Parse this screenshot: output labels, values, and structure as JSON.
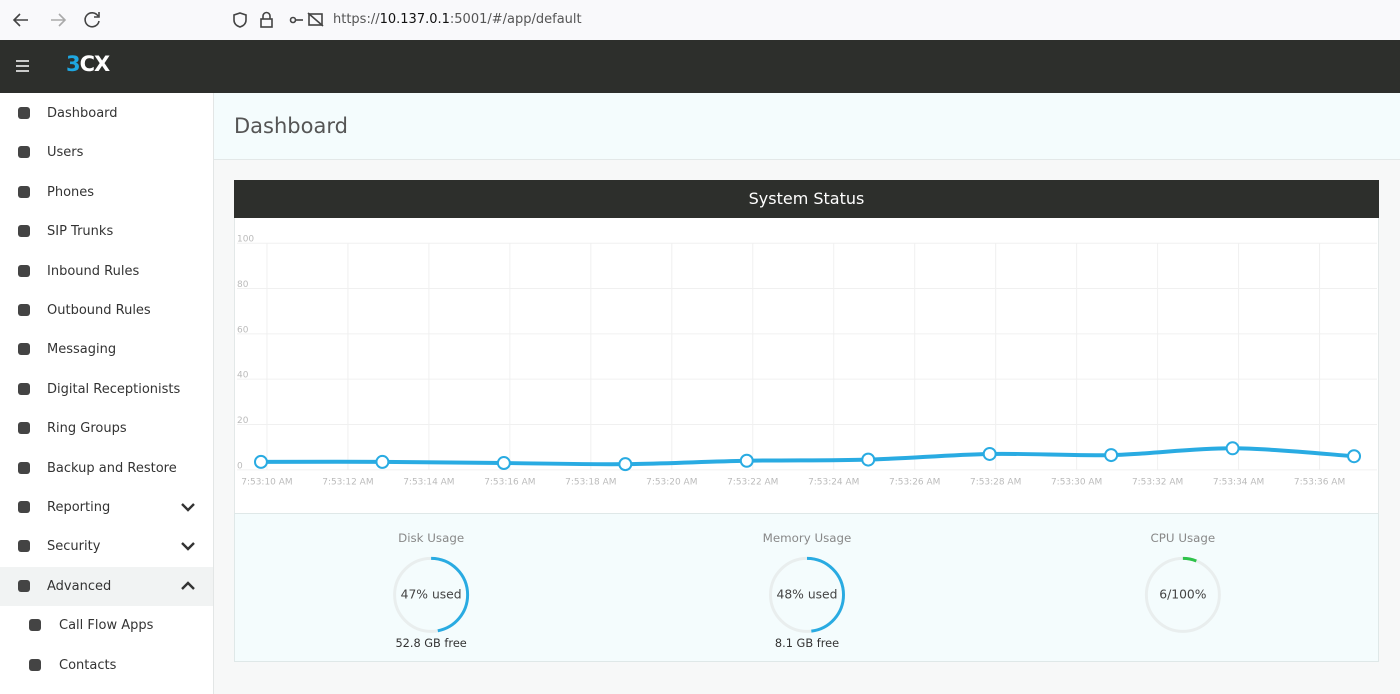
{
  "browser": {
    "url_scheme": "https://",
    "url_host": "10.137.0.1",
    "url_rest": ":5001/#/app/default"
  },
  "app": {
    "logo": "3CX"
  },
  "sidebar": {
    "items": [
      {
        "label": "Dashboard"
      },
      {
        "label": "Users"
      },
      {
        "label": "Phones"
      },
      {
        "label": "SIP Trunks"
      },
      {
        "label": "Inbound Rules"
      },
      {
        "label": "Outbound Rules"
      },
      {
        "label": "Messaging"
      },
      {
        "label": "Digital Receptionists"
      },
      {
        "label": "Ring Groups"
      },
      {
        "label": "Backup and Restore"
      },
      {
        "label": "Reporting",
        "chevron": "down"
      },
      {
        "label": "Security",
        "chevron": "down"
      },
      {
        "label": "Advanced",
        "chevron": "up",
        "active": true
      },
      {
        "label": "Call Flow Apps",
        "sub": true
      },
      {
        "label": "Contacts",
        "sub": true
      }
    ]
  },
  "page": {
    "title": "Dashboard"
  },
  "panel": {
    "title": "System Status"
  },
  "chart_data": {
    "type": "line",
    "x": [
      "7:53:10 AM",
      "7:53:13 AM",
      "7:53:16 AM",
      "7:53:19 AM",
      "7:53:22 AM",
      "7:53:25 AM",
      "7:53:28 AM",
      "7:53:31 AM",
      "7:53:34 AM",
      "7:53:37 AM"
    ],
    "values": [
      3.5,
      3.5,
      3,
      2.5,
      4,
      4.5,
      7,
      6.5,
      9.5,
      6
    ],
    "color": "#29abe2",
    "ylim": [
      0,
      100
    ],
    "yticks": [
      0,
      20,
      40,
      60,
      80,
      100
    ],
    "xticks": [
      "7:53:10 AM",
      "7:53:12 AM",
      "7:53:14 AM",
      "7:53:16 AM",
      "7:53:18 AM",
      "7:53:20 AM",
      "7:53:22 AM",
      "7:53:24 AM",
      "7:53:26 AM",
      "7:53:28 AM",
      "7:53:30 AM",
      "7:53:32 AM",
      "7:53:34 AM",
      "7:53:36 AM"
    ],
    "grid": true
  },
  "gauges": [
    {
      "title": "Disk Usage",
      "label": "47% used",
      "value": 47,
      "footer": "52.8 GB free",
      "color": "#29abe2"
    },
    {
      "title": "Memory Usage",
      "label": "48% used",
      "value": 48,
      "footer": "8.1 GB free",
      "color": "#29abe2"
    },
    {
      "title": "CPU Usage",
      "label": "6/100%",
      "value": 6,
      "color": "#2ec24a"
    }
  ]
}
